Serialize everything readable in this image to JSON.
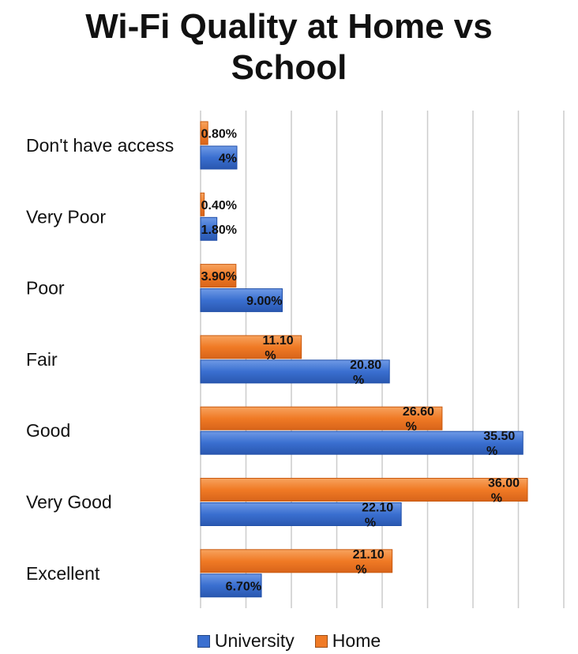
{
  "title": "Wi-Fi Quality at Home vs\nSchool",
  "legend": {
    "university": "University",
    "home": "Home"
  },
  "colors": {
    "university": "#3a6fd0",
    "university_dark": "#1f4ea8",
    "home": "#f07a25",
    "home_dark": "#c95a10",
    "grid": "#cccccc"
  },
  "chart_data": {
    "type": "bar",
    "orientation": "horizontal",
    "title": "Wi-Fi Quality at Home vs School",
    "xlim": [
      0,
      40
    ],
    "grid": true,
    "legend_position": "bottom",
    "categories": [
      "Don't have access",
      "Very Poor",
      "Poor",
      "Fair",
      "Good",
      "Very Good",
      "Excellent"
    ],
    "series": [
      {
        "name": "Home",
        "values": [
          0.8,
          0.4,
          3.9,
          11.1,
          26.6,
          36.0,
          21.1
        ],
        "labels": [
          "0.80%",
          "0.40%",
          "3.90%",
          "11.10\n%",
          "26.60\n%",
          "36.00\n%",
          "21.10\n%"
        ]
      },
      {
        "name": "University",
        "values": [
          4,
          1.8,
          9.0,
          20.8,
          35.5,
          22.1,
          6.7
        ],
        "labels": [
          "4%",
          "1.80%",
          "9.00%",
          "20.80\n%",
          "35.50\n%",
          "22.10\n%",
          "6.70%"
        ]
      }
    ]
  }
}
